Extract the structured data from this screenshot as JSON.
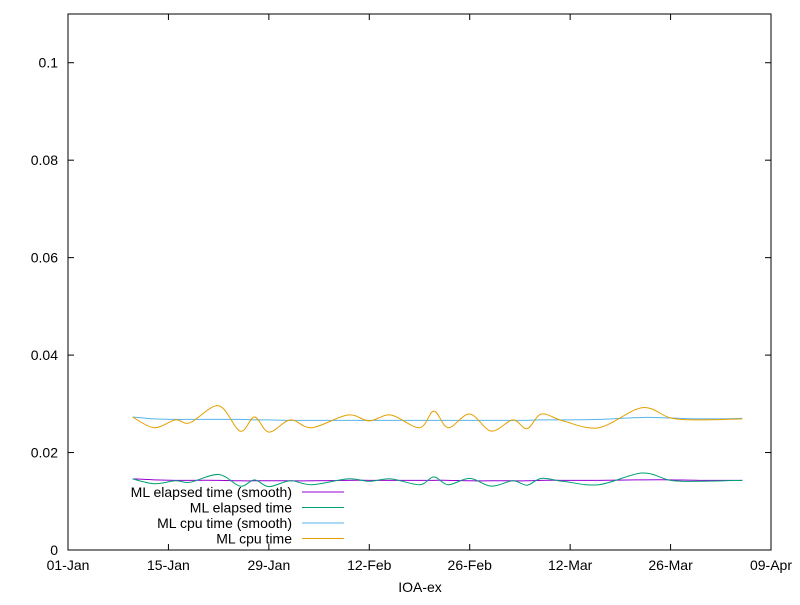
{
  "chart_data": {
    "type": "line",
    "title": "",
    "xlabel": "IOA-ex",
    "ylabel": "",
    "xlim": [
      "01-01",
      "04-09"
    ],
    "ylim": [
      0,
      0.11
    ],
    "x_ticks": [
      "01-Jan",
      "15-Jan",
      "29-Jan",
      "12-Feb",
      "26-Feb",
      "12-Mar",
      "26-Mar",
      "09-Apr"
    ],
    "y_ticks": [
      "0",
      "0.02",
      "0.04",
      "0.06",
      "0.08",
      "0.1"
    ],
    "y_tick_values": [
      0,
      0.02,
      0.04,
      0.06,
      0.08,
      0.1
    ],
    "grid": false,
    "legend_position": "bottom-left",
    "x": [
      "01-10",
      "01-13",
      "01-16",
      "01-18",
      "01-22",
      "01-25",
      "01-27",
      "01-29",
      "02-01",
      "02-04",
      "02-09",
      "02-12",
      "02-15",
      "02-19",
      "02-21",
      "02-23",
      "02-26",
      "03-01",
      "03-04",
      "03-06",
      "03-08",
      "03-11",
      "03-16",
      "03-22",
      "03-26",
      "03-30",
      "04-05"
    ],
    "series": [
      {
        "name": "ML elapsed time (smooth)",
        "color": "#9400d3",
        "values": [
          0.0146,
          0.0144,
          0.0143,
          0.0143,
          0.0143,
          0.0142,
          0.0142,
          0.0142,
          0.0142,
          0.0142,
          0.0143,
          0.0143,
          0.0143,
          0.0143,
          0.0143,
          0.0143,
          0.0142,
          0.0142,
          0.0142,
          0.0142,
          0.0143,
          0.0143,
          0.0143,
          0.0144,
          0.0144,
          0.0143,
          0.0143
        ]
      },
      {
        "name": "ML elapsed time",
        "color": "#009e73",
        "values": [
          0.0146,
          0.0136,
          0.0142,
          0.0139,
          0.0155,
          0.0131,
          0.0144,
          0.013,
          0.0142,
          0.0134,
          0.0146,
          0.0141,
          0.0146,
          0.0134,
          0.015,
          0.0134,
          0.0147,
          0.0131,
          0.0142,
          0.0133,
          0.0147,
          0.0141,
          0.0134,
          0.0158,
          0.0143,
          0.0141,
          0.0143
        ]
      },
      {
        "name": "ML cpu time (smooth)",
        "color": "#56b4e9",
        "values": [
          0.0273,
          0.0269,
          0.0268,
          0.0268,
          0.0268,
          0.0268,
          0.0267,
          0.0267,
          0.0266,
          0.0266,
          0.0266,
          0.0266,
          0.0266,
          0.0266,
          0.0266,
          0.0266,
          0.0266,
          0.0266,
          0.0266,
          0.0266,
          0.0267,
          0.0267,
          0.0268,
          0.0272,
          0.0271,
          0.0269,
          0.027
        ]
      },
      {
        "name": "ML cpu time",
        "color": "#e69f00",
        "values": [
          0.0273,
          0.0251,
          0.0267,
          0.0261,
          0.0296,
          0.0244,
          0.0273,
          0.0242,
          0.0267,
          0.0251,
          0.0277,
          0.0265,
          0.0277,
          0.0251,
          0.0285,
          0.0251,
          0.0279,
          0.0244,
          0.0267,
          0.0249,
          0.0279,
          0.0265,
          0.0251,
          0.0292,
          0.0271,
          0.0267,
          0.0269
        ]
      }
    ]
  }
}
